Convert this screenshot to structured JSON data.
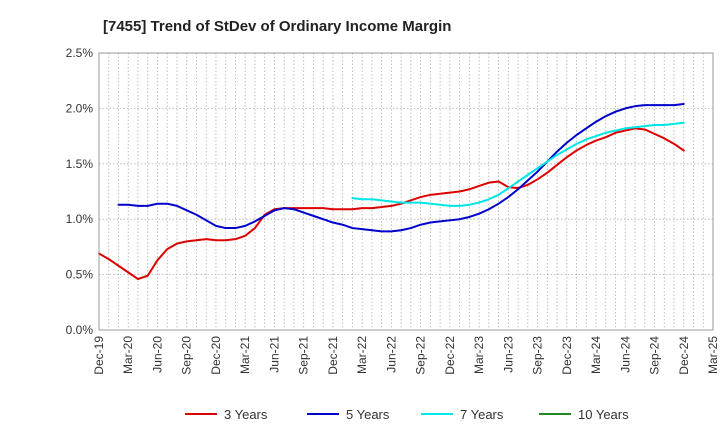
{
  "chart_data": {
    "type": "line",
    "title": "[7455]  Trend of StDev of Ordinary Income Margin",
    "xlabel": "",
    "ylabel": "",
    "x_ticks": [
      "Dec-19",
      "Mar-20",
      "Jun-20",
      "Sep-20",
      "Dec-20",
      "Mar-21",
      "Jun-21",
      "Sep-21",
      "Dec-21",
      "Mar-22",
      "Jun-22",
      "Sep-22",
      "Dec-22",
      "Mar-23",
      "Jun-23",
      "Sep-23",
      "Dec-23",
      "Mar-24",
      "Jun-24",
      "Sep-24",
      "Dec-24",
      "Mar-25"
    ],
    "y_ticks": [
      "0.0%",
      "0.5%",
      "1.0%",
      "1.5%",
      "2.0%",
      "2.5%"
    ],
    "ylim": [
      0,
      2.5
    ],
    "y_unit": "%",
    "grid": true,
    "legend_position": "bottom",
    "series": [
      {
        "name": "3 Years",
        "color": "#dd0000",
        "points": [
          [
            "Dec-19",
            0.69
          ],
          [
            "Jan-20",
            0.64
          ],
          [
            "Feb-20",
            0.58
          ],
          [
            "Mar-20",
            0.52
          ],
          [
            "Apr-20",
            0.46
          ],
          [
            "May-20",
            0.49
          ],
          [
            "Jun-20",
            0.63
          ],
          [
            "Jul-20",
            0.73
          ],
          [
            "Aug-20",
            0.78
          ],
          [
            "Sep-20",
            0.8
          ],
          [
            "Oct-20",
            0.81
          ],
          [
            "Nov-20",
            0.82
          ],
          [
            "Dec-20",
            0.81
          ],
          [
            "Jan-21",
            0.81
          ],
          [
            "Feb-21",
            0.82
          ],
          [
            "Mar-21",
            0.85
          ],
          [
            "Apr-21",
            0.92
          ],
          [
            "May-21",
            1.04
          ],
          [
            "Jun-21",
            1.09
          ],
          [
            "Jul-21",
            1.1
          ],
          [
            "Aug-21",
            1.1
          ],
          [
            "Sep-21",
            1.1
          ],
          [
            "Oct-21",
            1.1
          ],
          [
            "Nov-21",
            1.1
          ],
          [
            "Dec-21",
            1.09
          ],
          [
            "Jan-22",
            1.09
          ],
          [
            "Feb-22",
            1.09
          ],
          [
            "Mar-22",
            1.1
          ],
          [
            "Apr-22",
            1.1
          ],
          [
            "May-22",
            1.11
          ],
          [
            "Jun-22",
            1.12
          ],
          [
            "Jul-22",
            1.14
          ],
          [
            "Aug-22",
            1.17
          ],
          [
            "Sep-22",
            1.2
          ],
          [
            "Oct-22",
            1.22
          ],
          [
            "Nov-22",
            1.23
          ],
          [
            "Dec-22",
            1.24
          ],
          [
            "Jan-23",
            1.25
          ],
          [
            "Feb-23",
            1.27
          ],
          [
            "Mar-23",
            1.3
          ],
          [
            "Apr-23",
            1.33
          ],
          [
            "May-23",
            1.34
          ],
          [
            "Jun-23",
            1.29
          ],
          [
            "Jul-23",
            1.28
          ],
          [
            "Aug-23",
            1.31
          ],
          [
            "Sep-23",
            1.36
          ],
          [
            "Oct-23",
            1.42
          ],
          [
            "Nov-23",
            1.49
          ],
          [
            "Dec-23",
            1.56
          ],
          [
            "Jan-24",
            1.62
          ],
          [
            "Feb-24",
            1.67
          ],
          [
            "Mar-24",
            1.71
          ],
          [
            "Apr-24",
            1.74
          ],
          [
            "May-24",
            1.78
          ],
          [
            "Jun-24",
            1.8
          ],
          [
            "Jul-24",
            1.82
          ],
          [
            "Aug-24",
            1.81
          ],
          [
            "Sep-24",
            1.77
          ],
          [
            "Oct-24",
            1.73
          ],
          [
            "Nov-24",
            1.68
          ],
          [
            "Dec-24",
            1.62
          ]
        ]
      },
      {
        "name": "5 Years",
        "color": "#0000cc",
        "points": [
          [
            "Feb-20",
            1.13
          ],
          [
            "Mar-20",
            1.13
          ],
          [
            "Apr-20",
            1.12
          ],
          [
            "May-20",
            1.12
          ],
          [
            "Jun-20",
            1.14
          ],
          [
            "Jul-20",
            1.14
          ],
          [
            "Aug-20",
            1.12
          ],
          [
            "Sep-20",
            1.08
          ],
          [
            "Oct-20",
            1.04
          ],
          [
            "Nov-20",
            0.99
          ],
          [
            "Dec-20",
            0.94
          ],
          [
            "Jan-21",
            0.92
          ],
          [
            "Feb-21",
            0.92
          ],
          [
            "Mar-21",
            0.94
          ],
          [
            "Apr-21",
            0.98
          ],
          [
            "May-21",
            1.03
          ],
          [
            "Jun-21",
            1.08
          ],
          [
            "Jul-21",
            1.1
          ],
          [
            "Aug-21",
            1.09
          ],
          [
            "Sep-21",
            1.06
          ],
          [
            "Oct-21",
            1.03
          ],
          [
            "Nov-21",
            1.0
          ],
          [
            "Dec-21",
            0.97
          ],
          [
            "Jan-22",
            0.95
          ],
          [
            "Feb-22",
            0.92
          ],
          [
            "Mar-22",
            0.91
          ],
          [
            "Apr-22",
            0.9
          ],
          [
            "May-22",
            0.89
          ],
          [
            "Jun-22",
            0.89
          ],
          [
            "Jul-22",
            0.9
          ],
          [
            "Aug-22",
            0.92
          ],
          [
            "Sep-22",
            0.95
          ],
          [
            "Oct-22",
            0.97
          ],
          [
            "Nov-22",
            0.98
          ],
          [
            "Dec-22",
            0.99
          ],
          [
            "Jan-23",
            1.0
          ],
          [
            "Feb-23",
            1.02
          ],
          [
            "Mar-23",
            1.05
          ],
          [
            "Apr-23",
            1.09
          ],
          [
            "May-23",
            1.14
          ],
          [
            "Jun-23",
            1.2
          ],
          [
            "Jul-23",
            1.27
          ],
          [
            "Aug-23",
            1.35
          ],
          [
            "Sep-23",
            1.43
          ],
          [
            "Oct-23",
            1.52
          ],
          [
            "Nov-23",
            1.61
          ],
          [
            "Dec-23",
            1.69
          ],
          [
            "Jan-24",
            1.76
          ],
          [
            "Feb-24",
            1.82
          ],
          [
            "Mar-24",
            1.88
          ],
          [
            "Apr-24",
            1.93
          ],
          [
            "May-24",
            1.97
          ],
          [
            "Jun-24",
            2.0
          ],
          [
            "Jul-24",
            2.02
          ],
          [
            "Aug-24",
            2.03
          ],
          [
            "Sep-24",
            2.03
          ],
          [
            "Oct-24",
            2.03
          ],
          [
            "Nov-24",
            2.03
          ],
          [
            "Dec-24",
            2.04
          ]
        ]
      },
      {
        "name": "7 Years",
        "color": "#00e5e5",
        "points": [
          [
            "Feb-22",
            1.19
          ],
          [
            "Mar-22",
            1.18
          ],
          [
            "Apr-22",
            1.18
          ],
          [
            "May-22",
            1.17
          ],
          [
            "Jun-22",
            1.16
          ],
          [
            "Jul-22",
            1.15
          ],
          [
            "Aug-22",
            1.15
          ],
          [
            "Sep-22",
            1.15
          ],
          [
            "Oct-22",
            1.14
          ],
          [
            "Nov-22",
            1.13
          ],
          [
            "Dec-22",
            1.12
          ],
          [
            "Jan-23",
            1.12
          ],
          [
            "Feb-23",
            1.13
          ],
          [
            "Mar-23",
            1.15
          ],
          [
            "Apr-23",
            1.18
          ],
          [
            "May-23",
            1.22
          ],
          [
            "Jun-23",
            1.28
          ],
          [
            "Jul-23",
            1.34
          ],
          [
            "Aug-23",
            1.4
          ],
          [
            "Sep-23",
            1.46
          ],
          [
            "Oct-23",
            1.52
          ],
          [
            "Nov-23",
            1.58
          ],
          [
            "Dec-23",
            1.63
          ],
          [
            "Jan-24",
            1.68
          ],
          [
            "Feb-24",
            1.72
          ],
          [
            "Mar-24",
            1.75
          ],
          [
            "Apr-24",
            1.78
          ],
          [
            "May-24",
            1.8
          ],
          [
            "Jun-24",
            1.82
          ],
          [
            "Jul-24",
            1.83
          ],
          [
            "Aug-24",
            1.84
          ],
          [
            "Sep-24",
            1.85
          ],
          [
            "Oct-24",
            1.85
          ],
          [
            "Nov-24",
            1.86
          ],
          [
            "Dec-24",
            1.87
          ]
        ]
      },
      {
        "name": "10 Years",
        "color": "#228822",
        "points": []
      }
    ]
  }
}
